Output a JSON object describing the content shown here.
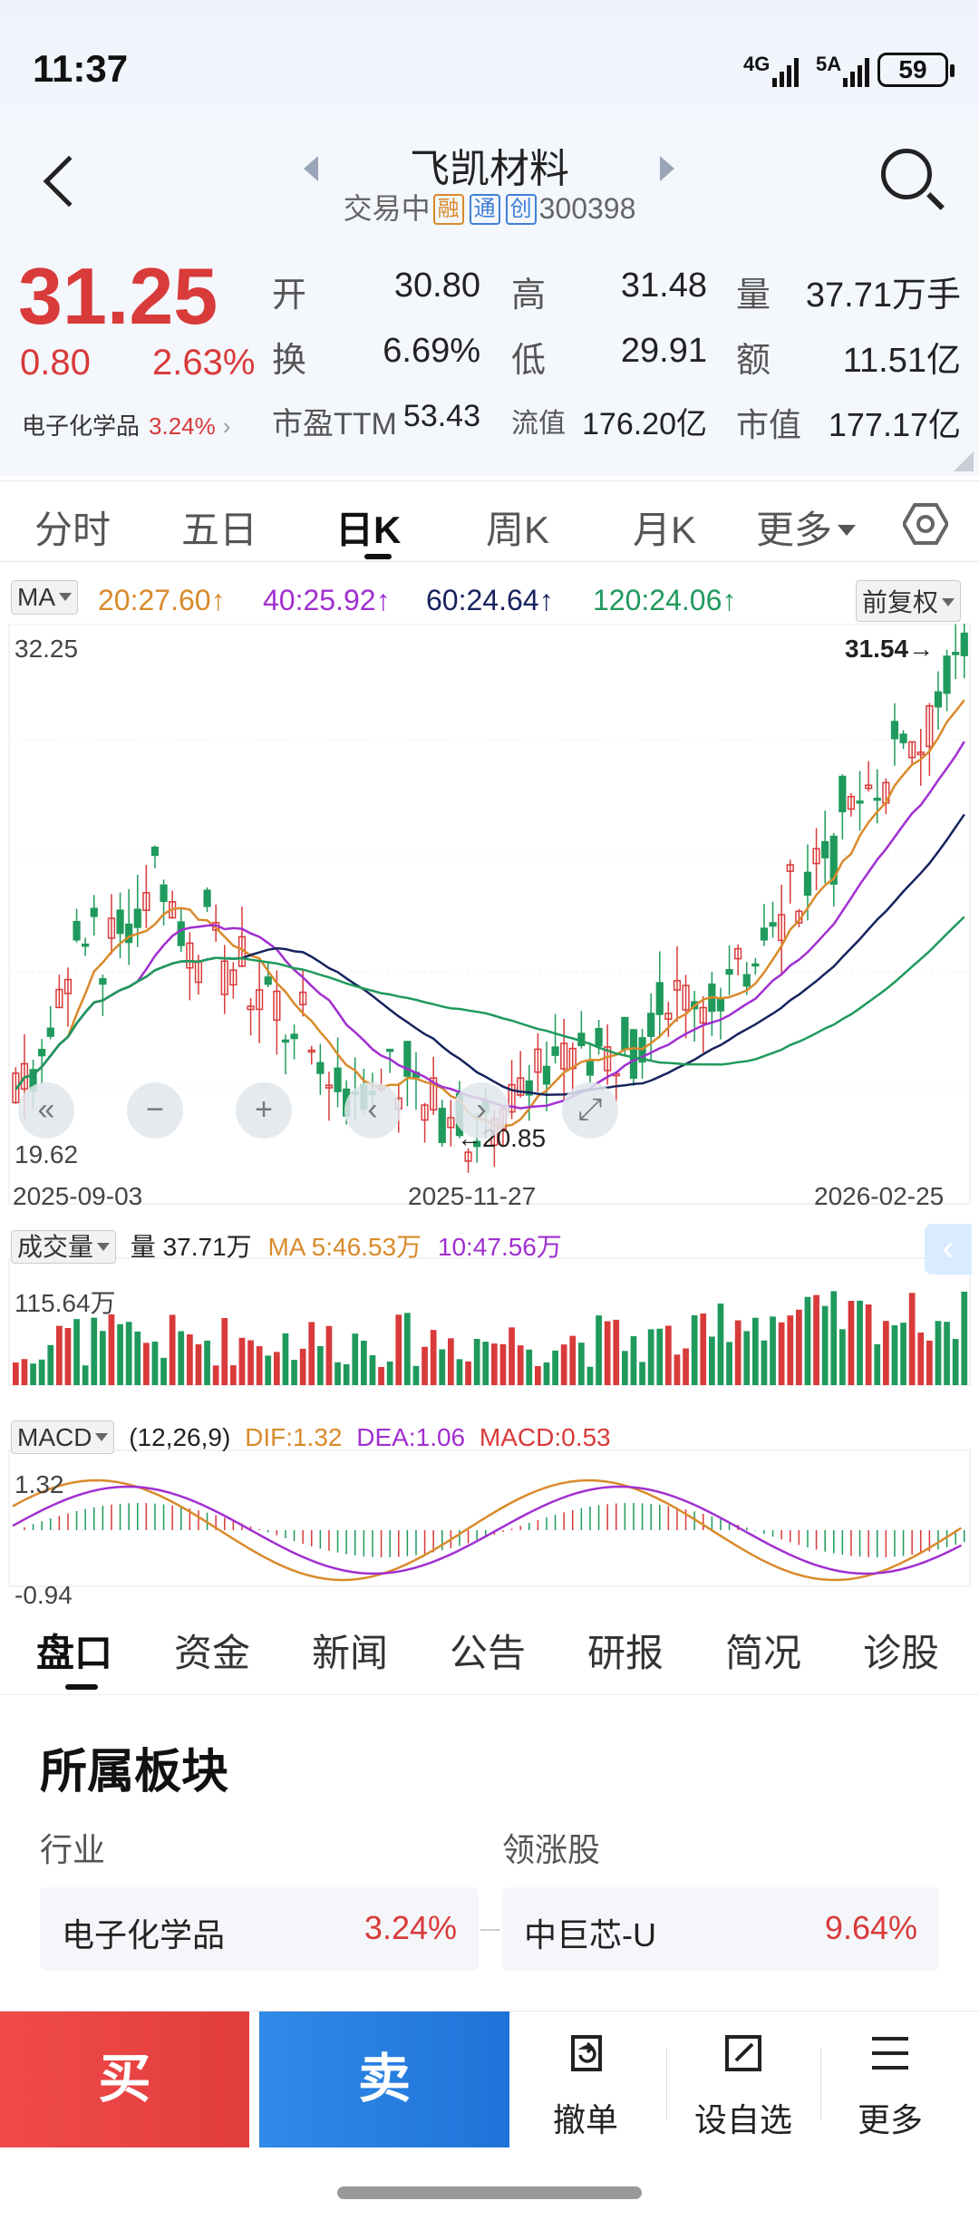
{
  "status_bar": {
    "time": "11:37",
    "net1": "4G",
    "net2": "5A",
    "battery": "59"
  },
  "header": {
    "title": "飞凯材料",
    "status": "交易中",
    "tags": [
      "融",
      "通",
      "创"
    ],
    "code": "300398"
  },
  "quote": {
    "price": "31.25",
    "change": "0.80",
    "change_pct": "2.63%",
    "sector_name": "电子化学品",
    "sector_pct": "3.24%",
    "labels": {
      "open": "开",
      "high": "高",
      "volume": "量",
      "turnover": "换",
      "low": "低",
      "amount": "额",
      "pe": "市盈TTM",
      "float_cap": "流值",
      "mkt_cap": "市值"
    },
    "open": "30.80",
    "high": "31.48",
    "volume": "37.71万手",
    "turnover": "6.69%",
    "low": "29.91",
    "amount": "11.51亿",
    "pe": "53.43",
    "float_cap": "176.20亿",
    "mkt_cap": "177.17亿"
  },
  "period_tabs": [
    "分时",
    "五日",
    "日K",
    "周K",
    "月K",
    "更多"
  ],
  "chart": {
    "ma_label": "MA",
    "ma_values": [
      {
        "text": "20:27.60↑",
        "color": "#d98a2b"
      },
      {
        "text": "40:25.92↑",
        "color": "#a12fd0"
      },
      {
        "text": "60:24.64↑",
        "color": "#16235e"
      },
      {
        "text": "120:24.06↑",
        "color": "#1f9a5c"
      }
    ],
    "adjust": "前复权",
    "y_max": "32.25",
    "y_min": "19.62",
    "high_mark": "31.54→",
    "low_mark": "←20.85",
    "dates": [
      "2025-09-03",
      "2025-11-27",
      "2026-02-25"
    ],
    "volume_label": "成交量",
    "volume_text": "量 37.71万",
    "volume_ma5": "MA 5:46.53万",
    "volume_ma10": "10:47.56万",
    "volume_max": "115.64万",
    "macd_label": "MACD",
    "macd_params": "(12,26,9)",
    "dif": "DIF:1.32",
    "dea": "DEA:1.06",
    "macd": "MACD:0.53",
    "macd_max": "1.32",
    "macd_min": "-0.94"
  },
  "bottom_tabs": [
    "盘口",
    "资金",
    "新闻",
    "公告",
    "研报",
    "简况",
    "诊股"
  ],
  "sector_section": {
    "title": "所属板块",
    "industry_label": "行业",
    "leader_label": "领涨股",
    "industry_name": "电子化学品",
    "industry_pct": "3.24%",
    "leader_name": "中巨芯-U",
    "leader_pct": "9.64%"
  },
  "actions": {
    "buy": "买",
    "sell": "卖",
    "cancel": "撤单",
    "watch": "设自选",
    "more": "更多"
  }
}
